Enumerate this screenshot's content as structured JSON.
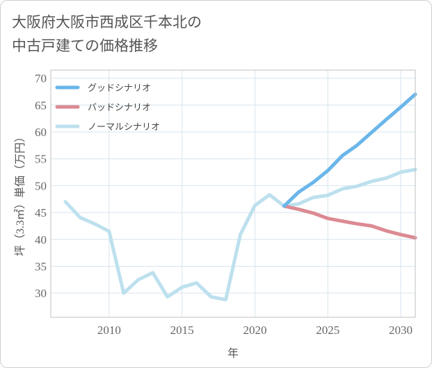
{
  "title": {
    "line1": "大阪府大阪市西成区千本北の",
    "line2": "中古戸建ての価格推移"
  },
  "colors": {
    "good": "#6ab6ea",
    "bad": "#dc8a92",
    "normal": "#bde0ee",
    "grid": "#d6e4ee",
    "axis": "#bfbfbf"
  },
  "chart_data": {
    "type": "line",
    "xlabel": "年",
    "ylabel": "坪（3.3㎡）単価（万円）",
    "xlim": [
      2006,
      2031
    ],
    "ylim": [
      25.5,
      71.5
    ],
    "x_ticks": [
      2010,
      2015,
      2020,
      2025,
      2030
    ],
    "y_ticks": [
      30,
      35,
      40,
      45,
      50,
      55,
      60,
      65,
      70
    ],
    "legend_position": "top-left",
    "grid": true,
    "series": [
      {
        "name": "グッドシナリオ",
        "color": "#6ab6ea",
        "x": [
          2022,
          2023,
          2024,
          2025,
          2026,
          2027,
          2028,
          2029,
          2030,
          2031
        ],
        "y": [
          46.2,
          48.8,
          50.6,
          52.8,
          55.6,
          57.5,
          59.9,
          62.3,
          64.6,
          67.0
        ]
      },
      {
        "name": "バッドシナリオ",
        "color": "#dc8a92",
        "x": [
          2022,
          2023,
          2024,
          2025,
          2026,
          2027,
          2028,
          2029,
          2030,
          2031
        ],
        "y": [
          46.2,
          45.6,
          44.9,
          43.9,
          43.4,
          42.9,
          42.5,
          41.6,
          40.9,
          40.3
        ]
      },
      {
        "name": "ノーマルシナリオ",
        "color": "#bde0ee",
        "x": [
          2007,
          2008,
          2009,
          2010,
          2011,
          2012,
          2013,
          2014,
          2015,
          2016,
          2017,
          2018,
          2019,
          2020,
          2021,
          2022,
          2023,
          2024,
          2025,
          2026,
          2027,
          2028,
          2029,
          2030,
          2031
        ],
        "y": [
          47.0,
          44.1,
          42.9,
          41.5,
          30.0,
          32.5,
          33.8,
          29.3,
          31.1,
          31.9,
          29.3,
          28.8,
          40.9,
          46.3,
          48.3,
          46.2,
          46.6,
          47.8,
          48.2,
          49.4,
          49.9,
          50.8,
          51.4,
          52.5,
          53.0
        ]
      }
    ]
  }
}
